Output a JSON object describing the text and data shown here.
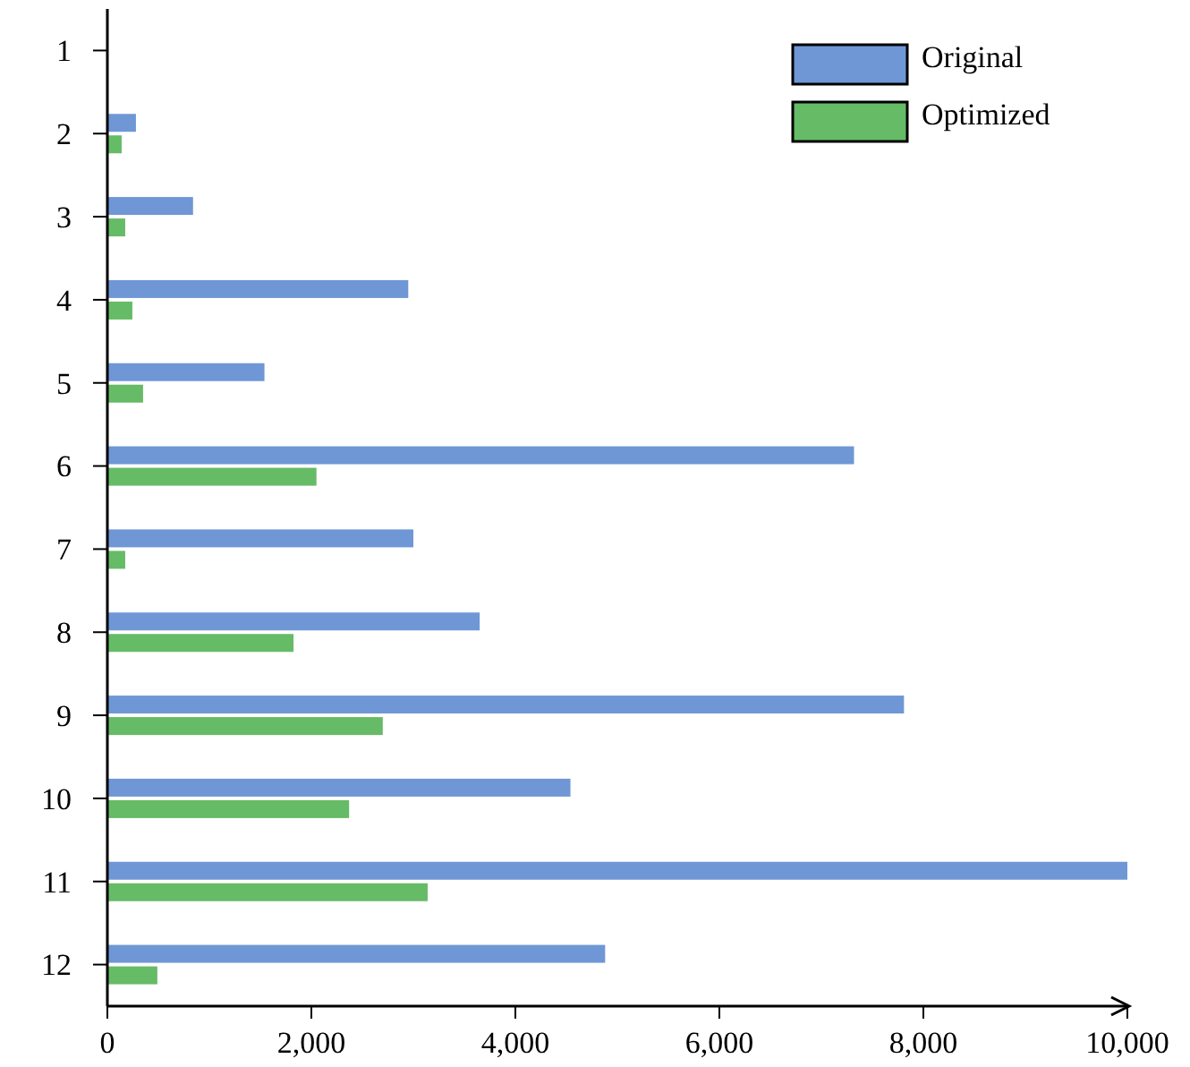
{
  "chart_data": {
    "type": "bar",
    "orientation": "horizontal",
    "categories": [
      "1",
      "2",
      "3",
      "4",
      "5",
      "6",
      "7",
      "8",
      "9",
      "10",
      "11",
      "12"
    ],
    "series": [
      {
        "name": "Original",
        "color": "#6f97d6",
        "values": [
          null,
          280,
          840,
          2950,
          1540,
          7320,
          3000,
          3650,
          7810,
          4540,
          10000,
          4880
        ]
      },
      {
        "name": "Optimized",
        "color": "#66bb66",
        "values": [
          null,
          140,
          175,
          245,
          350,
          2050,
          175,
          1825,
          2700,
          2370,
          3140,
          490
        ]
      }
    ],
    "xlim": [
      0,
      10000
    ],
    "xticks": [
      {
        "value": 0,
        "label": "0"
      },
      {
        "value": 2000,
        "label": "2,000"
      },
      {
        "value": 4000,
        "label": "4,000"
      },
      {
        "value": 6000,
        "label": "6,000"
      },
      {
        "value": 8000,
        "label": "8,000"
      },
      {
        "value": 10000,
        "label": "10,000"
      }
    ],
    "grid": false,
    "legend": "top right"
  }
}
